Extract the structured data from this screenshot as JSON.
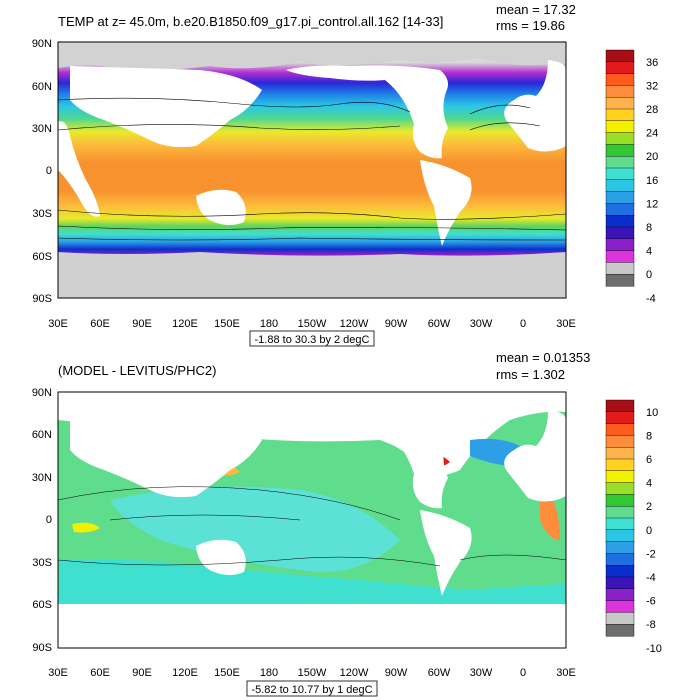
{
  "panels": [
    {
      "title": "TEMP at z=  45.0m, b.e20.B1850.f09_g17.pi_control.all.162 [14-33]",
      "stats": {
        "mean": "mean = 17.32",
        "rms": "rms = 19.86"
      },
      "range_label": "-1.88 to 30.3 by 2 degC",
      "colorbar": {
        "labels": [
          "36",
          "32",
          "28",
          "24",
          "20",
          "16",
          "12",
          "8",
          "4",
          "0",
          "-4"
        ],
        "colors": [
          "#a50f15",
          "#e31a1c",
          "#fd5a1e",
          "#fd8d3c",
          "#feb24c",
          "#ffd21f",
          "#f0f000",
          "#9bde2a",
          "#32c832",
          "#5fdc8c",
          "#3fe0d0",
          "#2bc6e6",
          "#2c9fe6",
          "#1f6fe0",
          "#0a2ecc",
          "#3b13b8",
          "#8a20c8",
          "#dc33dc",
          "#c8c8c8",
          "#6e6e6e"
        ]
      }
    },
    {
      "title": "(MODEL - LEVITUS/PHC2)",
      "stats": {
        "mean": "mean = 0.01353",
        "rms": "rms = 1.302"
      },
      "range_label": "-5.82 to 10.77 by 1 degC",
      "colorbar": {
        "labels": [
          "10",
          "8",
          "6",
          "4",
          "2",
          "0",
          "-2",
          "-4",
          "-6",
          "-8",
          "-10"
        ],
        "colors": [
          "#a50f15",
          "#e31a1c",
          "#fd5a1e",
          "#fd8d3c",
          "#feb24c",
          "#ffd21f",
          "#f0f000",
          "#9bde2a",
          "#32c832",
          "#5fdc8c",
          "#3fe0d0",
          "#2bc6e6",
          "#2c9fe6",
          "#1f6fe0",
          "#0a2ecc",
          "#3b13b8",
          "#8a20c8",
          "#dc33dc",
          "#c8c8c8",
          "#6e6e6e"
        ]
      }
    }
  ],
  "axes": {
    "lat_labels": [
      "90N",
      "60N",
      "30N",
      "0",
      "30S",
      "60S",
      "90S"
    ],
    "lon_labels": [
      "30E",
      "60E",
      "90E",
      "120E",
      "150E",
      "180",
      "150W",
      "120W",
      "90W",
      "60W",
      "30W",
      "0",
      "30E"
    ]
  }
}
